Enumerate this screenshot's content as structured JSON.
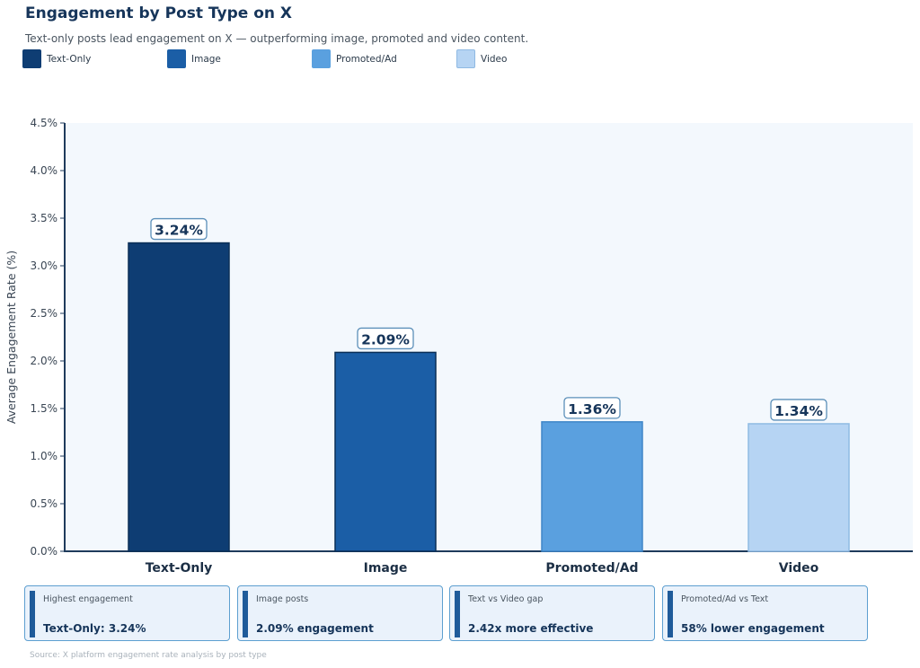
{
  "title": "Engagement by Post Type on X",
  "subtitle": "Text-only posts lead engagement on X — outperforming image, promoted and video content.",
  "legend": [
    {
      "label": "Text-Only",
      "color": "#0e3d73"
    },
    {
      "label": "Image",
      "color": "#1b5ea6"
    },
    {
      "label": "Promoted/Ad",
      "color": "#5aa0df"
    },
    {
      "label": "Video",
      "color": "#b6d4f3"
    }
  ],
  "chart_data": {
    "type": "bar",
    "title": "Engagement by Post Type on X",
    "xlabel": "",
    "ylabel": "Average Engagement Rate (%)",
    "categories": [
      "Text-Only",
      "Image",
      "Promoted/Ad",
      "Video"
    ],
    "values": [
      3.24,
      2.09,
      1.36,
      1.34
    ],
    "value_labels": [
      "3.24%",
      "2.09%",
      "1.36%",
      "1.34%"
    ],
    "colors": [
      "#0e3d73",
      "#1b5ea6",
      "#5aa0df",
      "#b6d4f3"
    ],
    "ylim": [
      0,
      4.5
    ],
    "yticks": [
      0,
      0.5,
      1.0,
      1.5,
      2.0,
      2.5,
      3.0,
      3.5,
      4.0,
      4.5
    ],
    "ytick_labels": [
      "0.0%",
      "0.5%",
      "1.0%",
      "1.5%",
      "2.0%",
      "2.5%",
      "3.0%",
      "3.5%",
      "4.0%",
      "4.5%"
    ],
    "grid": false,
    "legend_position": "top-left"
  },
  "cards": [
    {
      "title": "Highest engagement",
      "value": "Text-Only: 3.24%"
    },
    {
      "title": "Image posts",
      "value": "2.09% engagement"
    },
    {
      "title": "Text vs Video gap",
      "value": "2.42x more effective"
    },
    {
      "title": "Promoted/Ad vs Text",
      "value": "58% lower engagement"
    }
  ],
  "source": "Source: X platform engagement rate analysis by post type"
}
